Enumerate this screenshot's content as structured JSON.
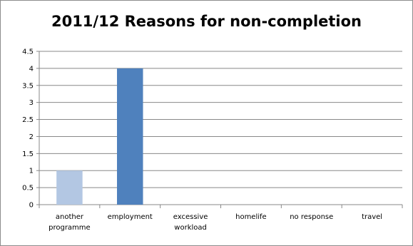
{
  "chart_data": {
    "type": "bar",
    "title": "2011/12 Reasons for non-completion",
    "xlabel": "",
    "ylabel": "",
    "categories": [
      [
        "another",
        "programme"
      ],
      [
        "employment"
      ],
      [
        "excessive",
        "workload"
      ],
      [
        "homelife"
      ],
      [
        "no response"
      ],
      [
        "travel"
      ]
    ],
    "values": [
      1,
      4,
      0,
      0,
      0,
      0
    ],
    "bar_colors": [
      "#b3c7e3",
      "#4f81bd",
      "#4f81bd",
      "#4f81bd",
      "#4f81bd",
      "#4f81bd"
    ],
    "ylim": [
      0,
      4.5
    ],
    "yticks": [
      0,
      0.5,
      1,
      1.5,
      2,
      2.5,
      3,
      3.5,
      4,
      4.5
    ],
    "grid": true,
    "legend": "none"
  }
}
